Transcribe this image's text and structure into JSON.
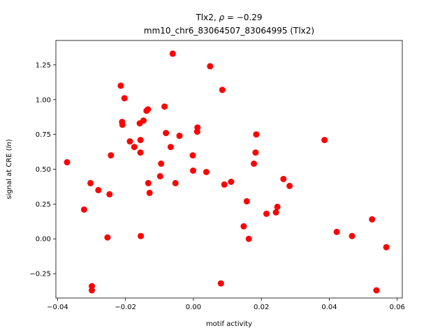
{
  "chart_data": {
    "type": "scatter",
    "title_line1_prefix": "Tlx2, ",
    "title_line1_rho": "ρ",
    "title_line1_suffix": " = −0.29",
    "title_line2": "mm10_chr6_83064507_83064995 (Tlx2)",
    "xlabel": "motif activity",
    "ylabel_prefix": "signal at CRE (",
    "ylabel_italic": "ln",
    "ylabel_suffix": ")",
    "xlim": [
      -0.0405,
      0.0615
    ],
    "ylim": [
      -0.425,
      1.425
    ],
    "xticks": [
      -0.04,
      -0.02,
      0.0,
      0.02,
      0.04,
      0.06
    ],
    "xtick_labels": [
      "−0.04",
      "−0.02",
      "0.00",
      "0.02",
      "0.04",
      "0.06"
    ],
    "yticks": [
      -0.25,
      0.0,
      0.25,
      0.5,
      0.75,
      1.0,
      1.25
    ],
    "ytick_labels": [
      "−0.25",
      "0.00",
      "0.25",
      "0.50",
      "0.75",
      "1.00",
      "1.25"
    ],
    "grid": false,
    "marker_color": "#ff0000",
    "points": [
      {
        "x": -0.0372,
        "y": 0.55
      },
      {
        "x": -0.0322,
        "y": 0.21
      },
      {
        "x": -0.0303,
        "y": 0.4
      },
      {
        "x": -0.0299,
        "y": -0.34
      },
      {
        "x": -0.0299,
        "y": -0.37
      },
      {
        "x": -0.028,
        "y": 0.35
      },
      {
        "x": -0.0253,
        "y": 0.01
      },
      {
        "x": -0.0247,
        "y": 0.32
      },
      {
        "x": -0.0243,
        "y": 0.6
      },
      {
        "x": -0.0214,
        "y": 1.1
      },
      {
        "x": -0.021,
        "y": 0.84
      },
      {
        "x": -0.0209,
        "y": 0.82
      },
      {
        "x": -0.0203,
        "y": 1.01
      },
      {
        "x": -0.0187,
        "y": 0.7
      },
      {
        "x": -0.0174,
        "y": 0.66
      },
      {
        "x": -0.0158,
        "y": 0.83
      },
      {
        "x": -0.0156,
        "y": 0.71
      },
      {
        "x": -0.0156,
        "y": 0.62
      },
      {
        "x": -0.0155,
        "y": 0.02
      },
      {
        "x": -0.0147,
        "y": 0.85
      },
      {
        "x": -0.0138,
        "y": 0.92
      },
      {
        "x": -0.0134,
        "y": 0.93
      },
      {
        "x": -0.0133,
        "y": 0.4
      },
      {
        "x": -0.0129,
        "y": 0.33
      },
      {
        "x": -0.0098,
        "y": 0.45
      },
      {
        "x": -0.0095,
        "y": 0.54
      },
      {
        "x": -0.0085,
        "y": 0.95
      },
      {
        "x": -0.0081,
        "y": 0.76
      },
      {
        "x": -0.0067,
        "y": 0.66
      },
      {
        "x": -0.0061,
        "y": 1.33
      },
      {
        "x": -0.0053,
        "y": 0.4
      },
      {
        "x": -0.0041,
        "y": 0.74
      },
      {
        "x": -0.0002,
        "y": 0.6
      },
      {
        "x": -0.0001,
        "y": 0.49
      },
      {
        "x": 0.0012,
        "y": 0.8
      },
      {
        "x": 0.0011,
        "y": 0.77
      },
      {
        "x": 0.0038,
        "y": 0.48
      },
      {
        "x": 0.0049,
        "y": 1.24
      },
      {
        "x": 0.0081,
        "y": -0.32
      },
      {
        "x": 0.0085,
        "y": 1.07
      },
      {
        "x": 0.0091,
        "y": 0.39
      },
      {
        "x": 0.0111,
        "y": 0.41
      },
      {
        "x": 0.0148,
        "y": 0.09
      },
      {
        "x": 0.0157,
        "y": 0.27
      },
      {
        "x": 0.0163,
        "y": 0.0
      },
      {
        "x": 0.0178,
        "y": 0.54
      },
      {
        "x": 0.0183,
        "y": 0.62
      },
      {
        "x": 0.0185,
        "y": 0.75
      },
      {
        "x": 0.0215,
        "y": 0.18
      },
      {
        "x": 0.0243,
        "y": 0.19
      },
      {
        "x": 0.0247,
        "y": 0.23
      },
      {
        "x": 0.0265,
        "y": 0.43
      },
      {
        "x": 0.0283,
        "y": 0.38
      },
      {
        "x": 0.0386,
        "y": 0.71
      },
      {
        "x": 0.0422,
        "y": 0.05
      },
      {
        "x": 0.0467,
        "y": 0.02
      },
      {
        "x": 0.0526,
        "y": 0.14
      },
      {
        "x": 0.0539,
        "y": -0.37
      },
      {
        "x": 0.0568,
        "y": -0.06
      }
    ]
  }
}
